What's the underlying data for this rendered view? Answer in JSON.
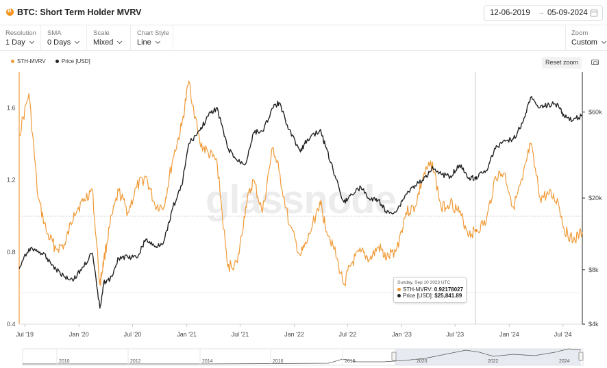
{
  "header": {
    "title": "BTC: Short Term Holder MVRV",
    "date_start": "12-06-2019",
    "date_arrow": "→",
    "date_end": "05-09-2024"
  },
  "toolbar": {
    "resolution": {
      "label": "Resolution",
      "value": "1 Day"
    },
    "sma": {
      "label": "SMA",
      "value": "0 Days"
    },
    "scale": {
      "label": "Scale",
      "value": "Mixed"
    },
    "chart_style": {
      "label": "Chart Style",
      "value": "Line"
    },
    "zoom": {
      "label": "Zoom",
      "value": "Custom"
    }
  },
  "legend": {
    "items": [
      {
        "label": "STH-MVRV",
        "color": "#f09a37"
      },
      {
        "label": "Price [USD]",
        "color": "#222222"
      }
    ]
  },
  "reset_zoom_label": "Reset zoom",
  "watermark": "glassnode",
  "tooltip": {
    "date": "Sunday, Sep 10 2023 UTC",
    "mvrv_label": "STH-MVRV:",
    "mvrv_value": "0.92178027",
    "price_label": "Price [USD]:",
    "price_value": "$25,841.89"
  },
  "navigator": {
    "years": [
      "2010",
      "2012",
      "2014",
      "2016",
      "2018",
      "2020",
      "2022",
      "2024"
    ]
  },
  "chart_data": {
    "type": "line",
    "x_ticks": [
      "Jul '19",
      "Jan '20",
      "Jul '20",
      "Jan '21",
      "Jul '21",
      "Jan '22",
      "Jul '22",
      "Jan '23",
      "Jul '23",
      "Jan '24",
      "Jul '24"
    ],
    "y_left_ticks": [
      "0.4",
      "0.8",
      "1.2",
      "1.6"
    ],
    "y_right_ticks": [
      "$4k",
      "$8k",
      "$20k",
      "$60k"
    ],
    "y_right_scale": "log",
    "x": [
      "2019-06-12",
      "2019-07-15",
      "2019-08-15",
      "2019-09-15",
      "2019-10-15",
      "2019-11-15",
      "2019-12-15",
      "2020-01-15",
      "2020-02-15",
      "2020-03-12",
      "2020-03-25",
      "2020-04-15",
      "2020-05-15",
      "2020-06-15",
      "2020-07-15",
      "2020-08-15",
      "2020-09-15",
      "2020-10-15",
      "2020-11-15",
      "2020-12-15",
      "2021-01-08",
      "2021-02-15",
      "2021-03-15",
      "2021-04-14",
      "2021-05-19",
      "2021-06-22",
      "2021-07-20",
      "2021-08-15",
      "2021-09-15",
      "2021-10-20",
      "2021-11-10",
      "2021-12-15",
      "2022-01-22",
      "2022-02-15",
      "2022-03-29",
      "2022-04-15",
      "2022-05-12",
      "2022-06-18",
      "2022-07-15",
      "2022-08-15",
      "2022-09-15",
      "2022-10-15",
      "2022-11-10",
      "2022-12-15",
      "2023-01-15",
      "2023-02-15",
      "2023-03-15",
      "2023-04-15",
      "2023-05-15",
      "2023-06-15",
      "2023-07-15",
      "2023-08-18",
      "2023-09-10",
      "2023-10-15",
      "2023-11-15",
      "2023-12-15",
      "2024-01-15",
      "2024-02-15",
      "2024-03-13",
      "2024-04-15",
      "2024-05-15",
      "2024-06-15",
      "2024-07-05",
      "2024-08-05",
      "2024-09-05"
    ],
    "series": [
      {
        "name": "STH-MVRV",
        "color": "#f09a37",
        "axis": "left",
        "values": [
          1.45,
          1.68,
          1.1,
          0.9,
          0.82,
          0.84,
          1.02,
          1.08,
          1.15,
          0.62,
          0.75,
          0.95,
          1.14,
          1.02,
          1.16,
          1.22,
          1.06,
          1.05,
          1.32,
          1.5,
          1.75,
          1.4,
          1.35,
          1.3,
          0.72,
          0.74,
          1.05,
          1.2,
          1.02,
          1.38,
          1.25,
          0.95,
          0.78,
          0.86,
          1.08,
          0.96,
          0.84,
          0.62,
          0.74,
          0.8,
          0.76,
          0.83,
          0.76,
          0.82,
          1.02,
          1.05,
          1.22,
          1.3,
          1.04,
          1.08,
          1.02,
          0.9,
          0.92,
          0.97,
          1.22,
          1.24,
          1.05,
          1.2,
          1.4,
          1.1,
          1.12,
          1.08,
          0.93,
          0.86,
          0.91
        ]
      },
      {
        "name": "Price [USD]",
        "color": "#222222",
        "axis": "right",
        "values": [
          8100,
          10500,
          10200,
          9300,
          8100,
          7300,
          7100,
          8300,
          9900,
          4900,
          6800,
          7000,
          9300,
          9400,
          9300,
          11800,
          10700,
          11500,
          17800,
          23500,
          40000,
          47500,
          57000,
          63500,
          38000,
          32000,
          31000,
          46000,
          47000,
          63000,
          67500,
          48000,
          36000,
          42500,
          47500,
          40000,
          29000,
          19000,
          21000,
          23000,
          19500,
          19500,
          16500,
          17000,
          21000,
          23500,
          25000,
          30000,
          27000,
          26500,
          30500,
          26000,
          25841.89,
          28500,
          37500,
          42000,
          42500,
          52000,
          72000,
          63500,
          66000,
          66000,
          57000,
          54000,
          57500
        ]
      }
    ]
  }
}
